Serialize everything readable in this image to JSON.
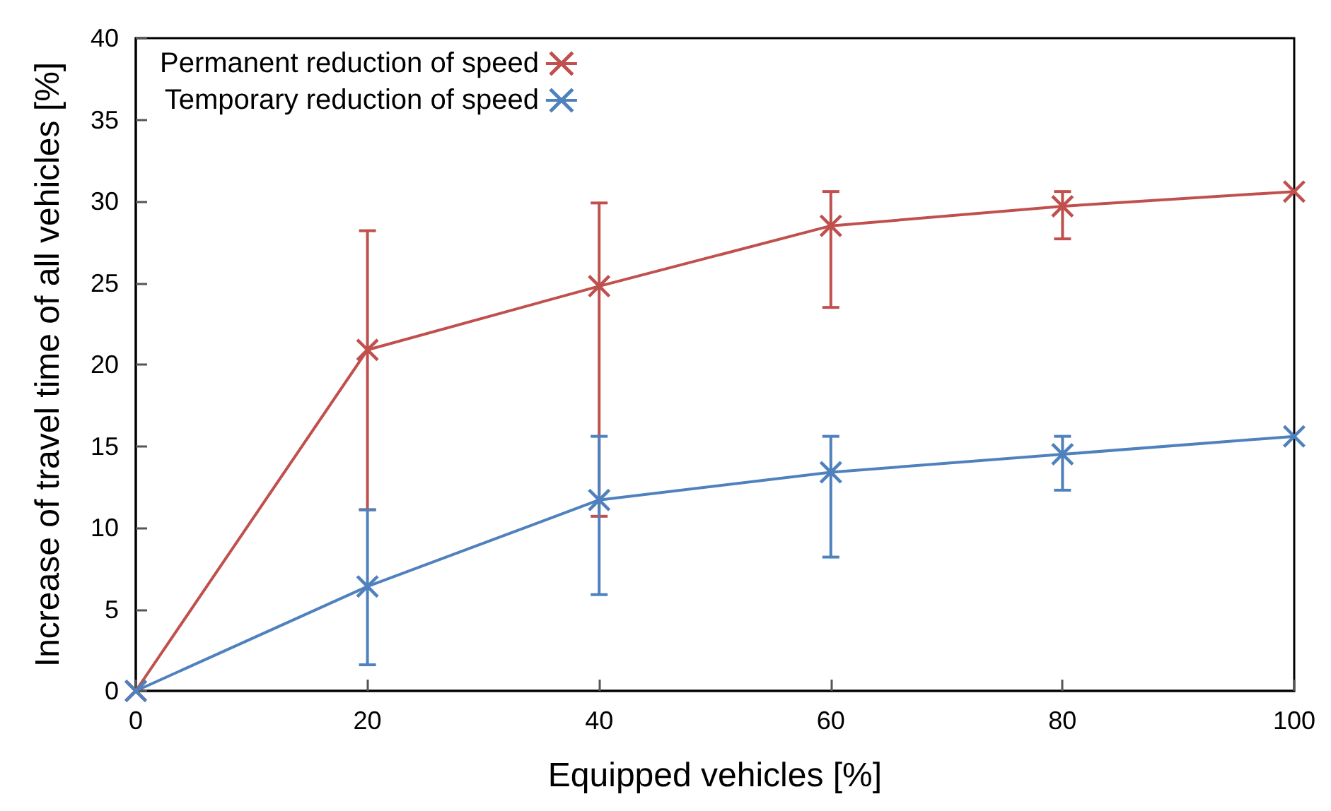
{
  "chart_data": {
    "type": "line",
    "xlabel": "Equipped vehicles [%]",
    "ylabel": "Increase of travel time of all vehicles [%]",
    "x": [
      0,
      20,
      40,
      60,
      80,
      100
    ],
    "xlim": [
      0,
      100
    ],
    "xticks": [
      0,
      20,
      40,
      60,
      80,
      100
    ],
    "ylim": [
      0,
      40
    ],
    "yticks": [
      0,
      5,
      10,
      15,
      20,
      25,
      30,
      35,
      40
    ],
    "grid": false,
    "legend": "top left",
    "series": [
      {
        "name": "Permanent reduction of speed",
        "color": "#c0504d",
        "marker": "cross",
        "values": [
          0,
          20.9,
          24.8,
          28.5,
          29.7,
          30.6
        ],
        "errors": [
          null,
          [
            11.1,
            28.2
          ],
          [
            10.7,
            29.9
          ],
          [
            23.5,
            30.6
          ],
          [
            27.7,
            30.6
          ],
          null
        ]
      },
      {
        "name": "Temporary reduction of speed",
        "color": "#4f81bd",
        "marker": "cross",
        "values": [
          0,
          6.4,
          11.7,
          13.4,
          14.5,
          15.6
        ],
        "errors": [
          null,
          [
            1.6,
            11.1
          ],
          [
            5.9,
            15.6
          ],
          [
            8.2,
            15.6
          ],
          [
            12.3,
            15.6
          ],
          null
        ]
      }
    ]
  }
}
